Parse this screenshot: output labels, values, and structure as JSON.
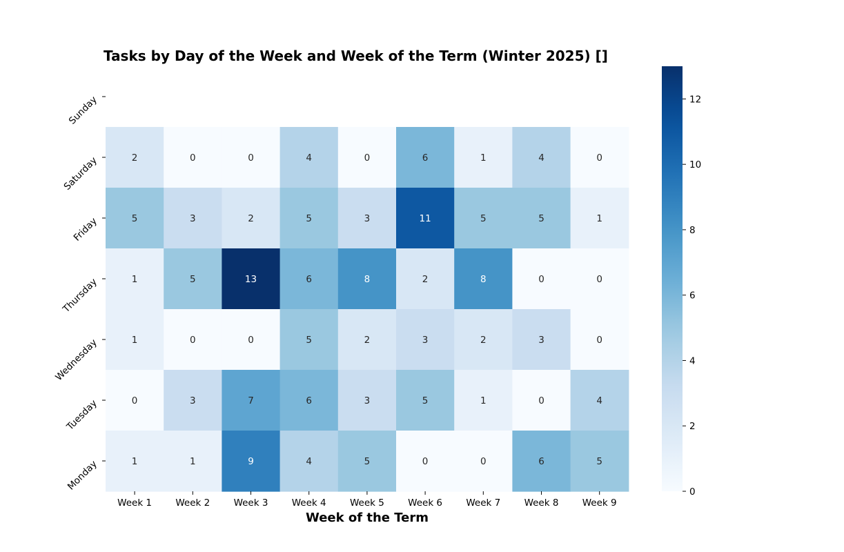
{
  "chart_data": {
    "type": "heatmap",
    "title": "Tasks by Day of the Week and Week of the Term (Winter 2025) []",
    "xlabel": "Week of the Term",
    "ylabel": "",
    "x_categories": [
      "Week 1",
      "Week 2",
      "Week 3",
      "Week 4",
      "Week 5",
      "Week 6",
      "Week 7",
      "Week 8",
      "Week 9"
    ],
    "y_categories": [
      "Sunday",
      "Saturday",
      "Friday",
      "Thursday",
      "Wednesday",
      "Tuesday",
      "Monday"
    ],
    "values": [
      [
        null,
        null,
        null,
        null,
        null,
        null,
        null,
        null,
        null
      ],
      [
        2,
        0,
        0,
        4,
        0,
        6,
        1,
        4,
        0
      ],
      [
        5,
        3,
        2,
        5,
        3,
        11,
        5,
        5,
        1
      ],
      [
        1,
        5,
        13,
        6,
        8,
        2,
        8,
        0,
        0
      ],
      [
        1,
        0,
        0,
        5,
        2,
        3,
        2,
        3,
        0
      ],
      [
        0,
        3,
        7,
        6,
        3,
        5,
        1,
        0,
        4
      ],
      [
        1,
        1,
        9,
        4,
        5,
        0,
        0,
        6,
        5
      ]
    ],
    "colorbar": {
      "min": 0,
      "max": 13,
      "ticks": [
        0,
        2,
        4,
        6,
        8,
        10,
        12
      ]
    },
    "colormap": "Blues",
    "annotations": true
  }
}
